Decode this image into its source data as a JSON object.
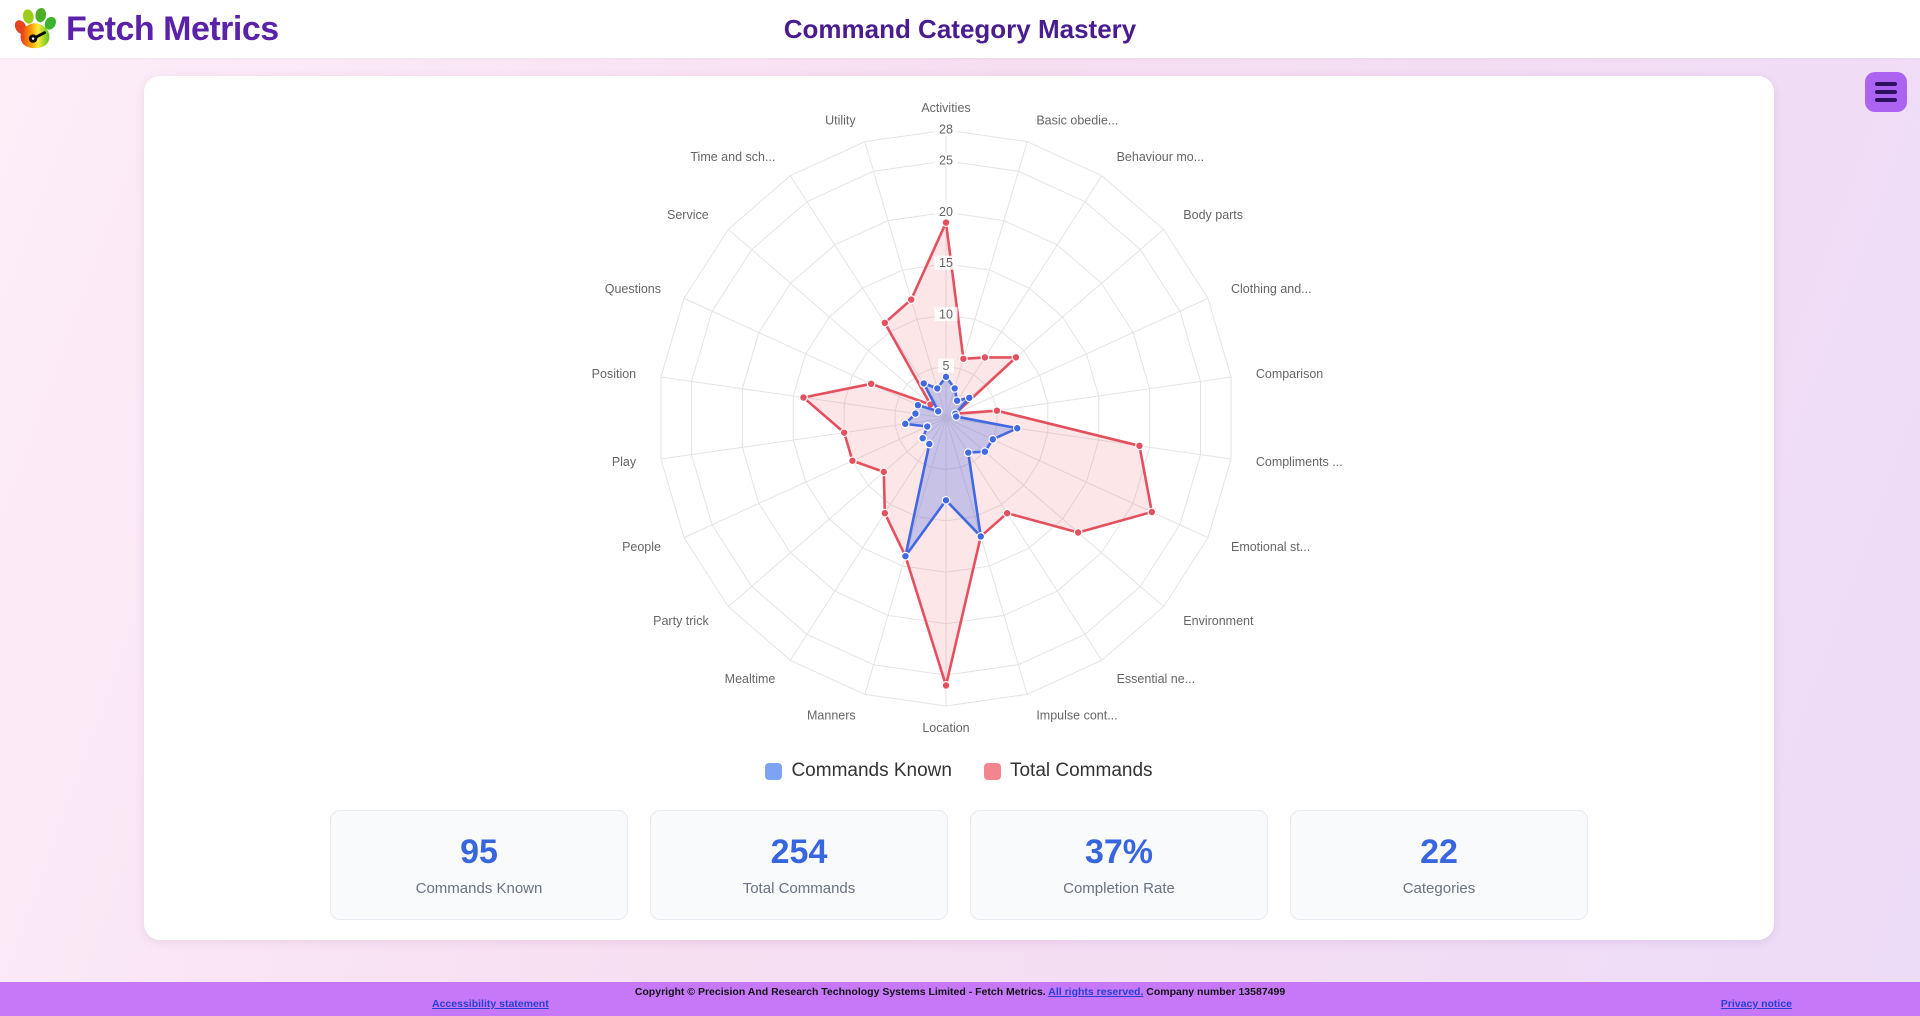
{
  "header": {
    "brand": "Fetch Metrics",
    "title": "Command Category Mastery"
  },
  "menu": {
    "icon": "hamburger-icon"
  },
  "chart_data": {
    "type": "radar",
    "title": "Command Category Mastery",
    "categories": [
      "Activities",
      "Basic obedie...",
      "Behaviour mo...",
      "Body parts",
      "Clothing and...",
      "Comparison",
      "Compliments ...",
      "Emotional st...",
      "Environment",
      "Essential ne...",
      "Impulse cont...",
      "Location",
      "Manners",
      "Mealtime",
      "Party trick",
      "People",
      "Play",
      "Position",
      "Questions",
      "Service",
      "Time and sch...",
      "Utility"
    ],
    "series": [
      {
        "name": "Commands Known",
        "color": "#4169e1",
        "fill": "rgba(65,105,225,0.28)",
        "legend_color": "#7da3f5",
        "values": [
          4,
          3,
          2,
          3,
          1,
          1,
          7,
          5,
          5,
          4,
          12,
          8,
          14,
          3,
          3,
          2,
          4,
          3,
          3,
          1,
          4,
          3
        ]
      },
      {
        "name": "Total Commands",
        "color": "#e5505f",
        "fill": "rgba(239,99,115,0.16)",
        "legend_color": "#f4848e",
        "values": [
          19,
          6,
          7,
          9,
          1,
          5,
          19,
          22,
          17,
          11,
          12,
          26,
          14,
          11,
          8,
          10,
          10,
          14,
          8,
          2,
          11,
          12
        ]
      }
    ],
    "axis": {
      "min": 0,
      "max": 28,
      "ticks": [
        5,
        10,
        15,
        20,
        25,
        28
      ]
    },
    "grid": {
      "on": true,
      "color": "#e4e4e8",
      "label_color": "#666666"
    },
    "legend_position": "bottom"
  },
  "stats": {
    "cards": [
      {
        "value": "95",
        "label": "Commands Known"
      },
      {
        "value": "254",
        "label": "Total Commands"
      },
      {
        "value": "37%",
        "label": "Completion Rate"
      },
      {
        "value": "22",
        "label": "Categories"
      }
    ]
  },
  "footer": {
    "copyright_prefix": "Copyright © Precision And Research Technology Systems Limited - Fetch Metrics. ",
    "rights_link": "All rights reserved.",
    "company": " Company number 13587499",
    "accessibility": "Accessibility statement",
    "privacy": "Privacy notice"
  },
  "colors": {
    "brand_purple": "#5b21a8",
    "title_purple": "#4a1d8f",
    "menu_button": "#ad63f2",
    "footer_purple": "#c678f8",
    "stat_value_blue": "#3766df"
  }
}
